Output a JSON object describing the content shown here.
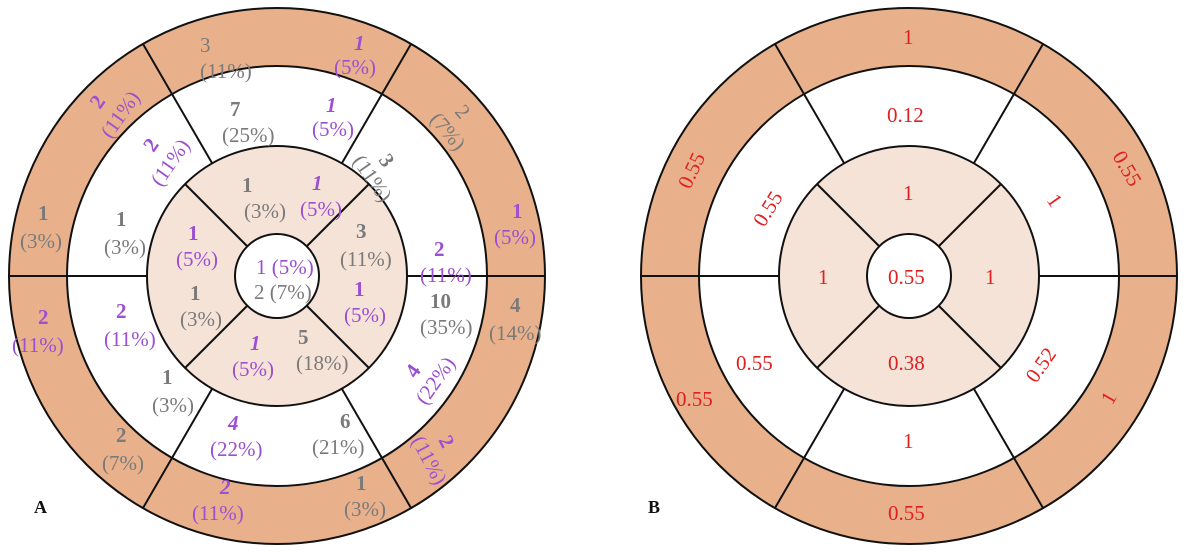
{
  "colors": {
    "outer_ring": "#e8b18b",
    "mid_ring": "#ffffff",
    "inner_ring": "#f6e3d8",
    "apex": "#ffffff",
    "grey_text": "#7a7a7a",
    "purple_text": "#9b4fd1",
    "red_text": "#e02020"
  },
  "panel_a": {
    "label": "A",
    "basal": {
      "s1": {
        "grey_n": "3",
        "grey_pct": "(11%)",
        "purple_n": "1",
        "purple_pct": "(5%)"
      },
      "s2": {
        "grey_n": "2",
        "grey_pct": "(7%)"
      },
      "s3": {
        "purple_n": "1",
        "purple_pct": "(5%)"
      },
      "s3b": {
        "grey_n": "4",
        "grey_pct": "(14%)"
      },
      "s4": {
        "purple_n": "2",
        "purple_pct": "(11%)"
      },
      "s5": {
        "grey_n": "1",
        "grey_pct": "(3%)"
      },
      "s5b": {
        "purple_n": "2",
        "purple_pct": "(11%)"
      },
      "s6": {
        "grey_n": "2",
        "grey_pct": "(7%)"
      },
      "s6b": {
        "purple_n": "2",
        "purple_pct": "(11%)"
      },
      "s7": {
        "grey_n": "1",
        "grey_pct": "(3%)"
      },
      "s7b": {
        "purple_n": "2",
        "purple_pct": "(11%)"
      }
    },
    "mid": {
      "s1": {
        "grey_n": "7",
        "grey_pct": "(25%)",
        "purple_n": "1",
        "purple_pct": "(5%)"
      },
      "s2": {
        "grey_n": "3",
        "grey_pct": "(11%)",
        "purple_n": "2",
        "purple_pct": "(11%)"
      },
      "s3": {
        "grey_n": "10",
        "grey_pct": "(35%)",
        "purple_n": "4",
        "purple_pct": "(22%)"
      },
      "s4": {
        "grey_n": "6",
        "grey_pct": "(21%)",
        "purple_n": "4",
        "purple_pct": "(22%)"
      },
      "s5": {
        "grey_n": "1",
        "grey_pct": "(3%)",
        "purple_n": "2",
        "purple_pct": "(11%)"
      },
      "s6": {
        "grey_n": "1",
        "grey_pct": "(3%)",
        "purple_n": "2",
        "purple_pct": "(11%)"
      }
    },
    "apical": {
      "top": {
        "grey_n": "1",
        "grey_pct": "(3%)",
        "purple_n": "1",
        "purple_pct": "(5%)"
      },
      "right": {
        "grey_n": "3",
        "grey_pct": "(11%)",
        "purple_n": "1",
        "purple_pct": "(5%)"
      },
      "bottom": {
        "grey_n": "5",
        "grey_pct": "(18%)",
        "purple_n": "1",
        "purple_pct": "(5%)"
      },
      "left": {
        "grey_n": "1",
        "grey_pct": "(3%)",
        "purple_n": "1",
        "purple_pct": "(5%)"
      }
    },
    "apex": {
      "purple": "1 (5%)",
      "grey": "2 (7%)"
    }
  },
  "panel_b": {
    "label": "B",
    "basal": {
      "top": "1",
      "top_right": "0.55",
      "bottom_right": "1",
      "bottom": "0.55",
      "bottom_left": "0.55",
      "top_left": "0.55"
    },
    "mid": {
      "top": "0.12",
      "top_right": "1",
      "bottom_right": "0.52",
      "bottom": "1",
      "bottom_left": "0.55",
      "top_left": "0.55"
    },
    "apical": {
      "top": "1",
      "right": "1",
      "bottom": "0.38",
      "left": "1"
    },
    "apex": "0.55"
  }
}
